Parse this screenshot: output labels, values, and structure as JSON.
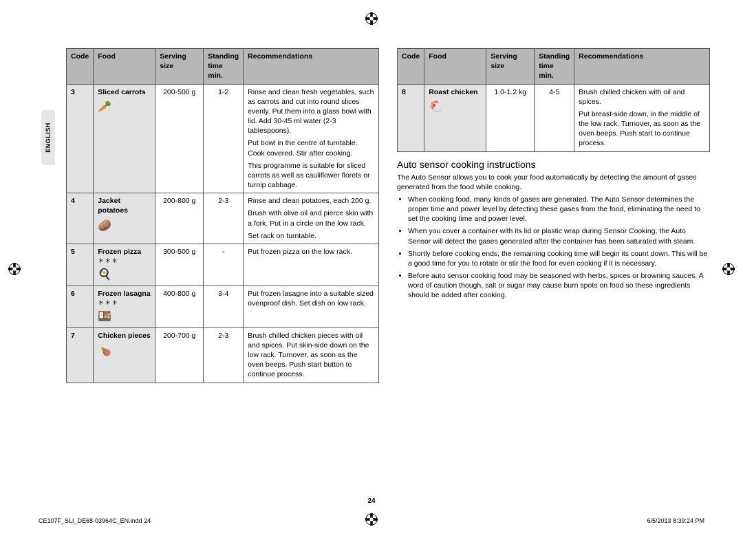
{
  "side_tab": "ENGLISH",
  "page_number": "24",
  "footer_left": "CE107F_SLI_DE68-03964C_EN.indd   24",
  "footer_right": "6/5/2013   8:39:24 PM",
  "table_headers": {
    "code": "Code",
    "food": "Food",
    "size": "Serving size",
    "time": "Standing time min.",
    "rec": "Recommendations"
  },
  "left_rows": [
    {
      "code": "3",
      "food": "Sliced carrots",
      "icon": "🥕",
      "stars": "",
      "size": "200-500 g",
      "time": "1-2",
      "rec": [
        "Rinse and clean fresh vegetables, such as carrots and cut into round slices evenly. Put them into a glass bowl with lid. Add 30-45 ml water (2-3 tablespoons).",
        "Put bowl in the centre of turntable. Cook covered. Stir after cooking.",
        "This programme is suitable for sliced carrots as well as cauliflower florets or turnip cabbage."
      ]
    },
    {
      "code": "4",
      "food": "Jacket potatoes",
      "icon": "🥔",
      "stars": "",
      "size": "200-800 g",
      "time": "2-3",
      "rec": [
        "Rinse and clean potatoes, each 200 g.",
        "Brush with olive oil and pierce skin with a fork. Put in a circle on the low rack.",
        "Set rack on turntable."
      ]
    },
    {
      "code": "5",
      "food": "Frozen pizza",
      "icon": "🍳",
      "stars": "＊＊＊",
      "size": "300-500 g",
      "time": "-",
      "rec": [
        "Put frozen pizza on the low rack."
      ]
    },
    {
      "code": "6",
      "food": "Frozen lasagna",
      "icon": "🍱",
      "stars": "＊＊＊",
      "size": "400-800 g",
      "time": "3-4",
      "rec": [
        "Put frozen lasagne into a suitable sized ovenproof dish. Set dish on low rack."
      ]
    },
    {
      "code": "7",
      "food": "Chicken pieces",
      "icon": "🍗",
      "stars": "",
      "size": "200-700 g",
      "time": "2-3",
      "rec": [
        "Brush chilled chicken pieces with oil and spices. Put skin-side down on the low rack. Turnover, as soon as the oven beeps. Push start button to continue process."
      ]
    }
  ],
  "right_rows": [
    {
      "code": "8",
      "food": "Roast chicken",
      "icon": "🐔",
      "stars": "",
      "size": "1.0-1.2 kg",
      "time": "4-5",
      "rec": [
        "Brush chilled chicken with oil and spices.",
        "Put breast-side down, in the middle of the low rack. Turnover, as soon as the oven beeps. Push start to continue process."
      ]
    }
  ],
  "right_section": {
    "title": "Auto sensor cooking instructions",
    "intro": "The Auto Sensor allows you to cook your food automatically by detecting the amount of gases generated from the food while cooking.",
    "bullets": [
      "When cooking food, many kinds of gases are generated. The Auto Sensor determines the proper time and power level by detecting these gases from the food, eliminating the need to set the cooking time and power level.",
      "When you cover a container with its lid or plastic wrap during Sensor Cooking, the Auto Sensor will detect the gases generated after the container has been saturated with steam.",
      "Shortly before cooking ends, the remaining cooking time will begin its count down. This will be a good time for you to rotate or stir the food for even cooking if it is necessary.",
      "Before auto sensor cooking food may be seasoned with herbs, spices or browning sauces. A word of caution though, salt or sugar may cause burn spots on food so these ingredients should be added after cooking."
    ]
  }
}
